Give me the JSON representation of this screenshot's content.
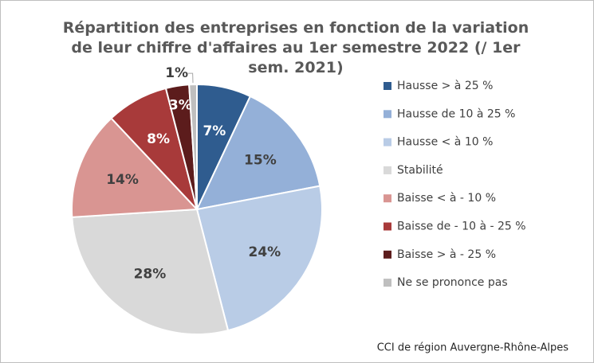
{
  "chart_data": {
    "type": "pie",
    "title": "Répartition des entreprises en fonction de la variation de leur chiffre d'affaires au 1er semestre 2022 (/ 1er sem. 2021)",
    "categories": [
      "Hausse > à 25 %",
      "Hausse de 10 à 25 %",
      "Hausse < à 10 %",
      "Stabilité",
      "Baisse < à - 10 %",
      "Baisse de - 10 à - 25 %",
      "Baisse > à - 25 %",
      "Ne se prononce pas"
    ],
    "values": [
      7,
      15,
      24,
      28,
      14,
      8,
      3,
      1
    ],
    "value_labels": [
      "7%",
      "15%",
      "24%",
      "28%",
      "14%",
      "8%",
      "3%",
      "1%"
    ],
    "colors": [
      "#2f5c8f",
      "#94b0d8",
      "#b9cce6",
      "#d9d9d9",
      "#d99592",
      "#a83a3a",
      "#5c1c1c",
      "#bfbfbf"
    ],
    "legend": "right",
    "source": "CCI de région Auvergne-Rhône-Alpes"
  }
}
